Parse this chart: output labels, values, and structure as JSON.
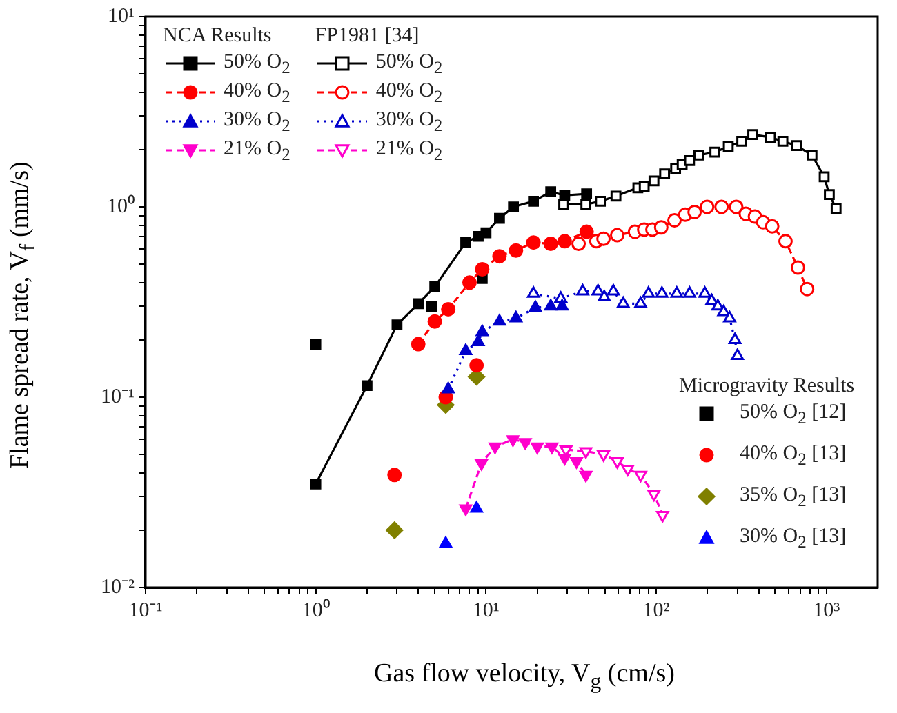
{
  "chart_data": {
    "type": "line",
    "xlabel": "Gas flow velocity, V$_{g}$ (cm/s)",
    "ylabel": "Flame spread rate, V$_{f}$ (mm/s)",
    "annotations": [
      "NCA Results",
      "FP1981 [34]",
      "Microgravity Results"
    ],
    "log": "xy",
    "grid": false,
    "legend": "top left",
    "xlim": [
      0.1,
      2000
    ],
    "ylim": [
      0.01,
      10
    ],
    "xticks": [
      {
        "value": 0.1,
        "label": "10⁻¹"
      },
      {
        "value": 0.2,
        "label": null
      },
      {
        "value": 0.3,
        "label": null
      },
      {
        "value": 0.4,
        "label": null
      },
      {
        "value": 0.5,
        "label": null
      },
      {
        "value": 0.6,
        "label": null
      },
      {
        "value": 0.7,
        "label": null
      },
      {
        "value": 0.8,
        "label": null
      },
      {
        "value": 0.9,
        "label": null
      },
      {
        "value": 1,
        "label": "10⁰"
      },
      {
        "value": 2,
        "label": null
      },
      {
        "value": 3,
        "label": null
      },
      {
        "value": 4,
        "label": null
      },
      {
        "value": 5,
        "label": null
      },
      {
        "value": 6,
        "label": null
      },
      {
        "value": 7,
        "label": null
      },
      {
        "value": 8,
        "label": null
      },
      {
        "value": 9,
        "label": null
      },
      {
        "value": 10,
        "label": "10¹"
      },
      {
        "value": 20,
        "label": null
      },
      {
        "value": 30,
        "label": null
      },
      {
        "value": 40,
        "label": null
      },
      {
        "value": 50,
        "label": null
      },
      {
        "value": 60,
        "label": null
      },
      {
        "value": 70,
        "label": null
      },
      {
        "value": 80,
        "label": null
      },
      {
        "value": 90,
        "label": null
      },
      {
        "value": 100,
        "label": "10²"
      },
      {
        "value": 200,
        "label": null
      },
      {
        "value": 300,
        "label": null
      },
      {
        "value": 400,
        "label": null
      },
      {
        "value": 500,
        "label": null
      },
      {
        "value": 600,
        "label": null
      },
      {
        "value": 700,
        "label": null
      },
      {
        "value": 800,
        "label": null
      },
      {
        "value": 900,
        "label": null
      },
      {
        "value": 1000,
        "label": "10³"
      }
    ],
    "yticks": [
      {
        "value": 0.01,
        "label": "10⁻²"
      },
      {
        "value": 0.02,
        "label": null
      },
      {
        "value": 0.03,
        "label": null
      },
      {
        "value": 0.04,
        "label": null
      },
      {
        "value": 0.05,
        "label": null
      },
      {
        "value": 0.06,
        "label": null
      },
      {
        "value": 0.07,
        "label": null
      },
      {
        "value": 0.08,
        "label": null
      },
      {
        "value": 0.09,
        "label": null
      },
      {
        "value": 0.1,
        "label": "10⁻¹"
      },
      {
        "value": 0.2,
        "label": null
      },
      {
        "value": 0.3,
        "label": null
      },
      {
        "value": 0.4,
        "label": null
      },
      {
        "value": 0.5,
        "label": null
      },
      {
        "value": 0.6,
        "label": null
      },
      {
        "value": 0.7,
        "label": null
      },
      {
        "value": 0.8,
        "label": null
      },
      {
        "value": 0.9,
        "label": null
      },
      {
        "value": 1,
        "label": "10⁰"
      },
      {
        "value": 2,
        "label": null
      },
      {
        "value": 3,
        "label": null
      },
      {
        "value": 4,
        "label": null
      },
      {
        "value": 5,
        "label": null
      },
      {
        "value": 6,
        "label": null
      },
      {
        "value": 7,
        "label": null
      },
      {
        "value": 8,
        "label": null
      },
      {
        "value": 9,
        "label": null
      },
      {
        "value": 10,
        "label": "10¹"
      }
    ],
    "series": [
      {
        "name": "50% O$_{2}$",
        "color": "#000000",
        "marker": "square",
        "line_style": "solid",
        "x": [
          1,
          2,
          3,
          4,
          5,
          7.6,
          9,
          10,
          12,
          14.5,
          19,
          24,
          29,
          39
        ],
        "values": [
          0.035,
          0.115,
          0.24,
          0.31,
          0.38,
          0.65,
          0.7,
          0.73,
          0.87,
          1.0,
          1.07,
          1.2,
          1.15,
          1.17
        ]
      },
      {
        "name": "40% O$_{2}$",
        "color": "#ff0000",
        "marker": "circle",
        "line_style": "dashed",
        "x": [
          4,
          5,
          6,
          8,
          9.5,
          12,
          15,
          19,
          24,
          29,
          39
        ],
        "values": [
          0.19,
          0.25,
          0.29,
          0.4,
          0.47,
          0.55,
          0.59,
          0.65,
          0.64,
          0.66,
          0.74
        ]
      },
      {
        "name": "30% O$_{2}$",
        "color": "#0000cc",
        "marker": "triangle",
        "line_style": "dotted",
        "x": [
          6,
          7.6,
          9,
          9.5,
          12,
          15,
          19.5,
          24,
          28
        ],
        "values": [
          0.11,
          0.175,
          0.195,
          0.22,
          0.25,
          0.26,
          0.295,
          0.3,
          0.3
        ]
      },
      {
        "name": "21% O$_{2}$",
        "color": "#ff00cc",
        "marker": "triangle-down",
        "line_style": "dashed",
        "x": [
          7.6,
          9.4,
          11.3,
          14.4,
          17,
          20,
          24.4,
          29,
          34,
          38.6
        ],
        "values": [
          0.026,
          0.045,
          0.055,
          0.06,
          0.058,
          0.055,
          0.055,
          0.048,
          0.046,
          0.039
        ]
      },
      {
        "name": "50% O$_{2}$",
        "color": "#000000",
        "marker": "square-open",
        "line_style": "solid",
        "x": [
          28.6,
          38.6,
          47,
          58,
          78,
          85,
          97,
          112,
          130,
          142,
          157,
          178,
          221,
          265,
          318,
          369,
          469,
          555,
          666,
          823,
          970,
          1040,
          1140
        ],
        "values": [
          1.03,
          1.03,
          1.07,
          1.14,
          1.26,
          1.28,
          1.37,
          1.49,
          1.59,
          1.67,
          1.75,
          1.87,
          1.94,
          2.07,
          2.21,
          2.4,
          2.32,
          2.21,
          2.1,
          1.87,
          1.44,
          1.16,
          0.98
        ]
      },
      {
        "name": "40% O$_{2}$",
        "color": "#ff0000",
        "marker": "circle-open",
        "line_style": "dashed",
        "x": [
          35,
          44.5,
          49,
          59,
          75,
          85,
          95,
          107,
          128,
          148,
          168,
          199,
          242,
          295,
          336,
          380,
          425,
          480,
          575,
          680,
          770
        ],
        "values": [
          0.64,
          0.66,
          0.68,
          0.71,
          0.74,
          0.76,
          0.76,
          0.78,
          0.85,
          0.91,
          0.94,
          1.0,
          1.0,
          1.0,
          0.92,
          0.89,
          0.83,
          0.79,
          0.66,
          0.48,
          0.37
        ]
      },
      {
        "name": "30% O$_{2}$",
        "color": "#0000cc",
        "marker": "triangle-open",
        "line_style": "dotted",
        "x": [
          19,
          27.5,
          37,
          45.5,
          49.5,
          56,
          64,
          81,
          90,
          108,
          132,
          157,
          193,
          212,
          230,
          249,
          270,
          290,
          300
        ],
        "values": [
          0.35,
          0.33,
          0.36,
          0.36,
          0.335,
          0.36,
          0.31,
          0.31,
          0.35,
          0.35,
          0.35,
          0.35,
          0.35,
          0.32,
          0.3,
          0.28,
          0.26,
          0.2,
          0.165
        ]
      },
      {
        "name": "21% O$_{2}$",
        "color": "#ff00cc",
        "marker": "triangle-down-open",
        "line_style": "dashed",
        "x": [
          29.5,
          38.6,
          49,
          59,
          68,
          81,
          97,
          109
        ],
        "values": [
          0.053,
          0.052,
          0.05,
          0.046,
          0.042,
          0.039,
          0.031,
          0.024
        ]
      },
      {
        "name": "50% O$_{2}$ [12]",
        "type": "scatter",
        "color": "#000000",
        "marker": "square",
        "x": [
          1,
          4.8,
          9.5
        ],
        "values": [
          0.19,
          0.3,
          0.42
        ]
      },
      {
        "name": "40% O$_{2}$ [13]",
        "type": "scatter",
        "color": "#ff0000",
        "marker": "circle",
        "x": [
          2.9,
          5.8,
          8.8
        ],
        "values": [
          0.039,
          0.1,
          0.147
        ]
      },
      {
        "name": "35% O$_{2}$ [13]",
        "type": "scatter",
        "color": "#808000",
        "marker": "diamond",
        "x": [
          2.9,
          5.8,
          8.8
        ],
        "values": [
          0.02,
          0.091,
          0.128
        ]
      },
      {
        "name": "30% O$_{2}$ [13]",
        "type": "scatter",
        "color": "#0000ff",
        "marker": "triangle",
        "x": [
          5.8,
          8.8
        ],
        "values": [
          0.017,
          0.026
        ]
      }
    ]
  }
}
